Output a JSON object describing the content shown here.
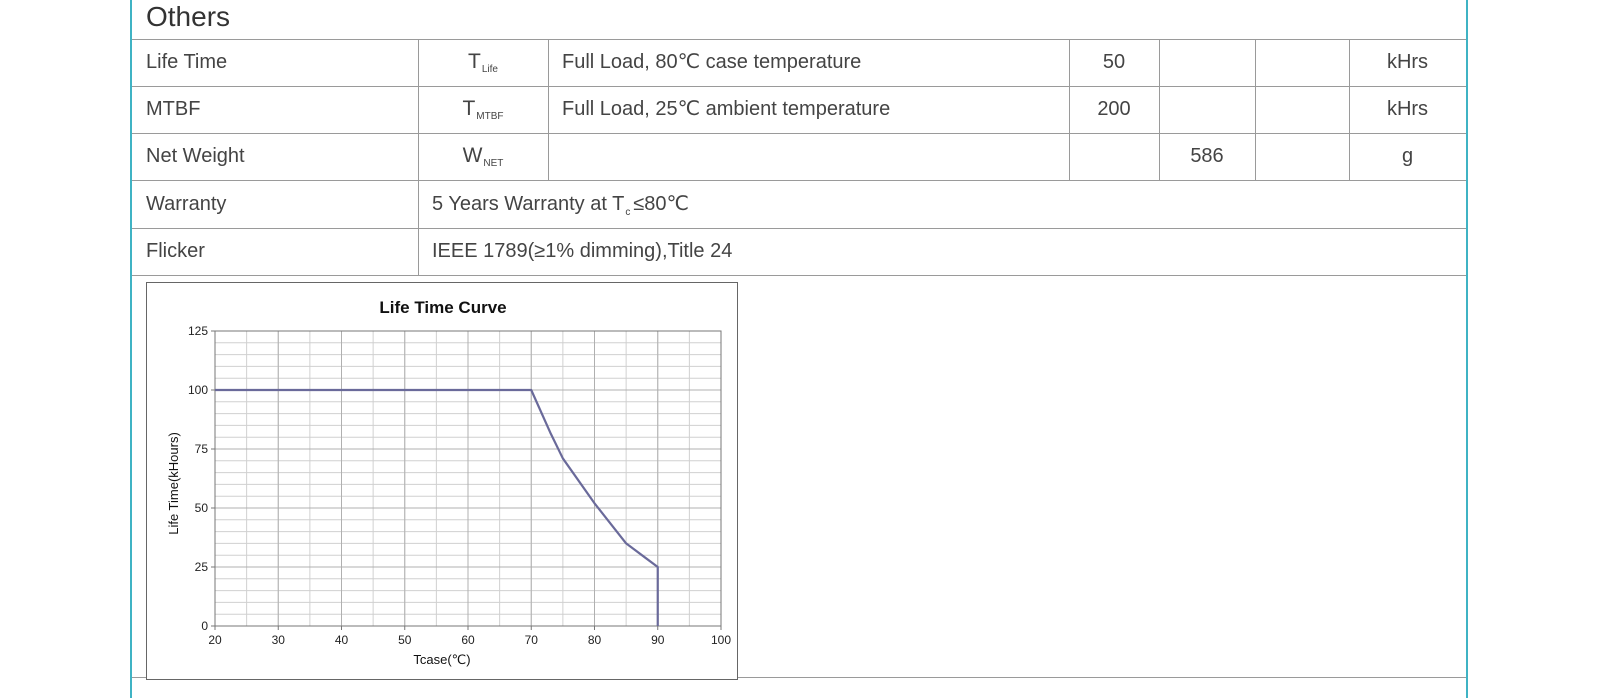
{
  "section": {
    "title": "Others"
  },
  "rows": [
    {
      "name": "Life Time",
      "symbol_main": "T",
      "symbol_sub": "Life",
      "condition": "Full Load, 80℃  case temperature",
      "min": "50",
      "typ": "",
      "max": "",
      "unit": "kHrs"
    },
    {
      "name": "MTBF",
      "symbol_main": "T",
      "symbol_sub": "MTBF",
      "condition": "Full Load, 25℃  ambient temperature",
      "min": "200",
      "typ": "",
      "max": "",
      "unit": "kHrs"
    },
    {
      "name": "Net Weight",
      "symbol_main": "W",
      "symbol_sub": "NET",
      "condition": "",
      "min": "",
      "typ": "586",
      "max": "",
      "unit": "g"
    }
  ],
  "warranty": {
    "name": "Warranty",
    "text_before": "5 Years Warranty at T",
    "text_sub": "c",
    "text_after": "≤80℃"
  },
  "flicker": {
    "name": "Flicker",
    "text": "IEEE 1789(≥1% dimming),Title 24"
  },
  "chart_data": {
    "type": "line",
    "title": "Life Time Curve",
    "xlabel": "Tcase(℃)",
    "ylabel": "Life Time(kHours)",
    "xlim": [
      20,
      100
    ],
    "ylim": [
      0,
      125
    ],
    "x_ticks": [
      20,
      30,
      40,
      50,
      60,
      70,
      80,
      90,
      100
    ],
    "y_ticks": [
      0,
      25,
      50,
      75,
      100,
      125
    ],
    "grid": true,
    "line_color": "#6a6a9a",
    "series": [
      {
        "x": [
          20,
          70,
          73,
          75,
          80,
          85,
          88,
          90,
          90
        ],
        "y": [
          100,
          100,
          82,
          71,
          52,
          35,
          29,
          25,
          0
        ]
      }
    ]
  }
}
